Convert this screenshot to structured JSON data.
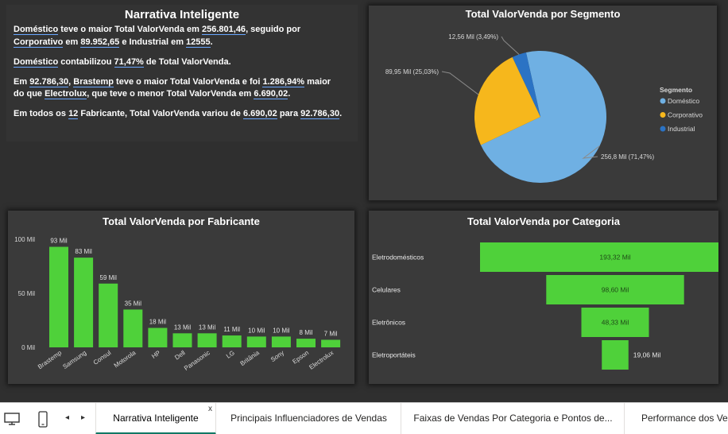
{
  "narrative": {
    "title": "Narrativa Inteligente",
    "p1": {
      "a": "Doméstico",
      "b": " teve o maior Total ValorVenda em ",
      "c": "256.801,46",
      "d": ", seguido por",
      "e": "Corporativo",
      "f": " em ",
      "g": "89.952,65",
      "h": " e Industrial em ",
      "i": "12555",
      "j": "."
    },
    "p2": {
      "a": "Doméstico",
      "b": " contabilizou ",
      "c": "71,47%",
      "d": " de Total ValorVenda."
    },
    "p3": {
      "a": "Em ",
      "b": "92.786,30",
      "c": ", ",
      "d": "Brastemp",
      "e": " teve o maior Total ValorVenda e foi ",
      "f": "1.286,94%",
      "g": " maior",
      "h": "do que ",
      "i": "Electrolux",
      "j": ", que teve o menor Total ValorVenda em ",
      "k": "6.690,02",
      "l": "."
    },
    "p4": {
      "a": "Em todos os ",
      "b": "12",
      "c": " Fabricante",
      "d": ", Total ValorVenda variou de ",
      "e": "6.690,02",
      "f": " para ",
      "g": "92.786,30",
      "h": "."
    }
  },
  "charts": {
    "pie_title": "Total ValorVenda por Segmento",
    "bar_title": "Total ValorVenda por Fabricante",
    "funnel_title": "Total ValorVenda por Categoria"
  },
  "chart_data": [
    {
      "type": "pie",
      "title": "Total ValorVenda por Segmento",
      "legend_title": "Segmento",
      "legend_position": "right",
      "slices": [
        {
          "name": "Doméstico",
          "value": 256.8,
          "percent": 71.47,
          "label": "256,8 Mil (71,47%)",
          "color": "#6fb0e3"
        },
        {
          "name": "Corporativo",
          "value": 89.95,
          "percent": 25.03,
          "label": "89,95 Mil (25,03%)",
          "color": "#f6b71c"
        },
        {
          "name": "Industrial",
          "value": 12.56,
          "percent": 3.49,
          "label": "12,56 Mil (3,49%)",
          "color": "#2b73c4"
        }
      ]
    },
    {
      "type": "bar",
      "title": "Total ValorVenda por Fabricante",
      "categories": [
        "Brastemp",
        "Samsung",
        "Consul",
        "Motorola",
        "HP",
        "Dell",
        "Panasonic",
        "LG",
        "Britânia",
        "Sony",
        "Epson",
        "Electrolux"
      ],
      "values": [
        93,
        83,
        59,
        35,
        18,
        13,
        13,
        11,
        10,
        10,
        8,
        7
      ],
      "data_labels": [
        "93 Mil",
        "83 Mil",
        "59 Mil",
        "35 Mil",
        "18 Mil",
        "13 Mil",
        "13 Mil",
        "11 Mil",
        "10 Mil",
        "10 Mil",
        "8 Mil",
        "7 Mil"
      ],
      "yticks": [
        "0 Mil",
        "50 Mil",
        "100 Mil"
      ],
      "ylim": [
        0,
        100
      ],
      "color": "#4fd13a"
    },
    {
      "type": "funnel",
      "title": "Total ValorVenda por Categoria",
      "categories": [
        "Eletrodomésticos",
        "Celulares",
        "Eletrônicos",
        "Eletroportáteis"
      ],
      "values": [
        193.32,
        98.6,
        48.33,
        19.06
      ],
      "data_labels": [
        "193,32 Mil",
        "98,60 Mil",
        "48,33 Mil",
        "19,06 Mil"
      ],
      "color": "#4fd13a"
    }
  ],
  "tabs": [
    {
      "label": "Narrativa Inteligente",
      "active": true,
      "close": "x"
    },
    {
      "label": "Principais Influenciadores de Vendas",
      "active": false
    },
    {
      "label": "Faixas de Vendas Por Categoria e Pontos de...",
      "active": false
    },
    {
      "label": "Performance dos Ve",
      "active": false
    }
  ],
  "icons": {
    "desktop": "desktop-icon",
    "phone": "phone-icon",
    "prev": "◂",
    "next": "▸"
  }
}
